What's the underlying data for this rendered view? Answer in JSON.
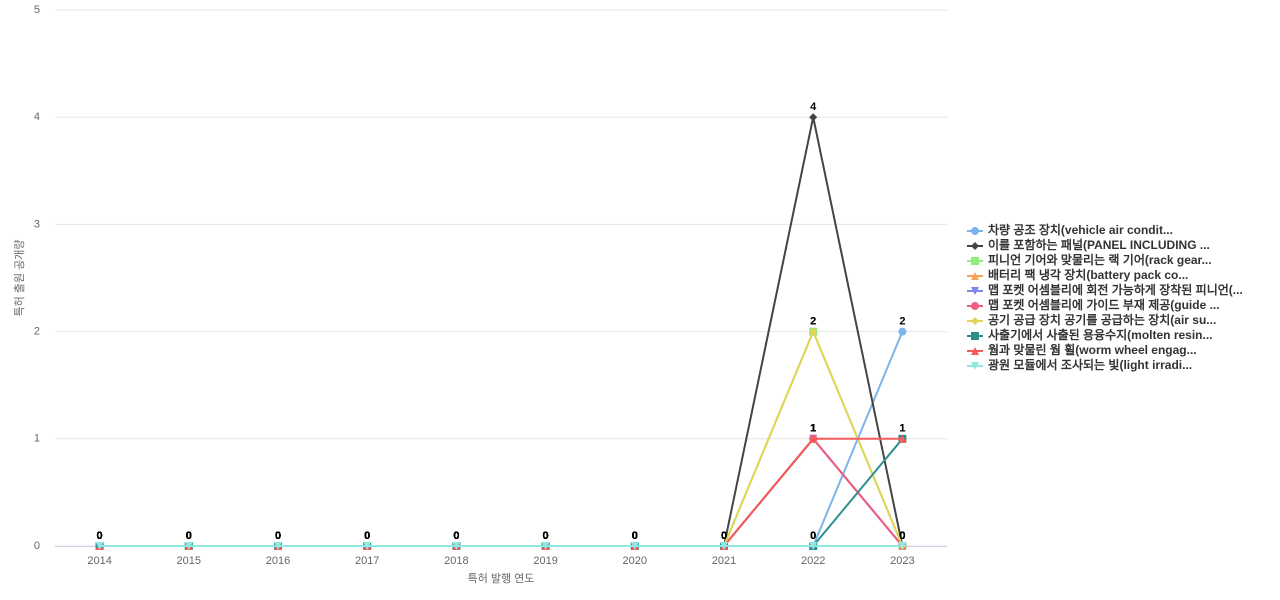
{
  "chart_data": {
    "type": "line",
    "x_label": "특허 발행 연도",
    "y_label": "특허 출원 공개량",
    "categories": [
      "2014",
      "2015",
      "2016",
      "2017",
      "2018",
      "2019",
      "2020",
      "2021",
      "2022",
      "2023"
    ],
    "ylim": [
      0,
      5
    ],
    "yticks": [
      0,
      1,
      2,
      3,
      4,
      5
    ],
    "grid": true,
    "legend": "right",
    "series": [
      {
        "name": "차량 공조 장치(vehicle air condit...",
        "color": "#7cb5ec",
        "values": [
          0,
          0,
          0,
          0,
          0,
          0,
          0,
          0,
          0,
          2
        ]
      },
      {
        "name": "이를 포함하는 패널(PANEL INCLUDING ...",
        "color": "#434348",
        "values": [
          0,
          0,
          0,
          0,
          0,
          0,
          0,
          0,
          4,
          0
        ]
      },
      {
        "name": "피니언 기어와 맞물리는 랙 기어(rack gear...",
        "color": "#90ed7d",
        "values": [
          0,
          0,
          0,
          0,
          0,
          0,
          0,
          0,
          2,
          0
        ]
      },
      {
        "name": "배터리 팩 냉각 장치(battery pack co...",
        "color": "#f7a35c",
        "values": [
          0,
          0,
          0,
          0,
          0,
          0,
          0,
          0,
          1,
          0
        ]
      },
      {
        "name": "맵 포켓 어셈블리에 회전 가능하게 장착된 피니언(...",
        "color": "#8085e9",
        "values": [
          0,
          0,
          0,
          0,
          0,
          0,
          0,
          0,
          1,
          0
        ]
      },
      {
        "name": "맵 포켓 어셈블리에 가이드 부재 제공(guide ...",
        "color": "#f15c80",
        "values": [
          0,
          0,
          0,
          0,
          0,
          0,
          0,
          0,
          1,
          0
        ]
      },
      {
        "name": "공기 공급 장치 공기를 공급하는 장치(air su...",
        "color": "#e4d354",
        "values": [
          0,
          0,
          0,
          0,
          0,
          0,
          0,
          0,
          2,
          0
        ]
      },
      {
        "name": "사출기에서 사출된 용융수지(molten resin...",
        "color": "#2b908f",
        "values": [
          0,
          0,
          0,
          0,
          0,
          0,
          0,
          0,
          0,
          1
        ]
      },
      {
        "name": "웜과 맞물린 웜 휠(worm wheel engag...",
        "color": "#f45b5b",
        "values": [
          0,
          0,
          0,
          0,
          0,
          0,
          0,
          0,
          1,
          1
        ]
      },
      {
        "name": "광원 모듈에서 조사되는 빛(light irradi...",
        "color": "#91e8e1",
        "values": [
          0,
          0,
          0,
          0,
          0,
          0,
          0,
          0,
          0,
          0
        ]
      }
    ]
  }
}
